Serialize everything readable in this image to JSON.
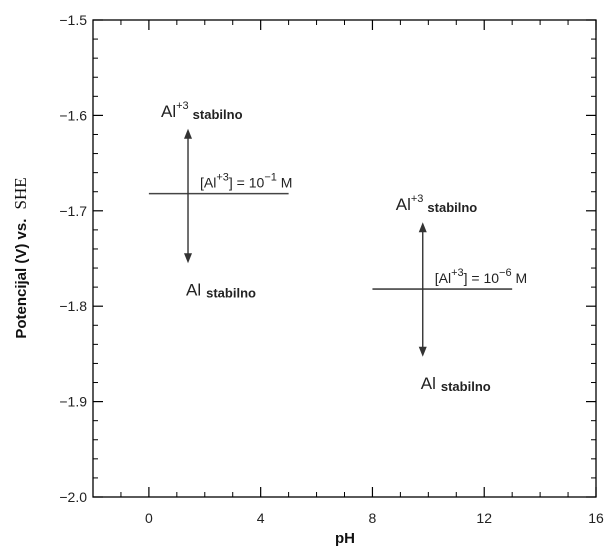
{
  "chart_data": {
    "type": "line",
    "title": "",
    "xlabel": "pH",
    "ylabel_sans": "Potencijal (V) vs.",
    "ylabel_serif": "SHE",
    "xlim": [
      -2,
      16
    ],
    "ylim": [
      -2.0,
      -1.5
    ],
    "xticks": [
      0,
      4,
      8,
      12,
      16
    ],
    "xtick_labels": [
      "0",
      "4",
      "8",
      "12",
      "16"
    ],
    "yticks": [
      -2.0,
      -1.9,
      -1.8,
      -1.7,
      -1.6,
      -1.5
    ],
    "ytick_labels": [
      "-2.0",
      "-1.9",
      "-1.8",
      "-1.7",
      "-1.6",
      "-1.5"
    ],
    "grid": false,
    "series": [
      {
        "x": [
          0,
          5
        ],
        "y": [
          -1.682,
          -1.682
        ],
        "equation": {
          "prefix": "[Al",
          "sup": "+3",
          "middle": "] = 10",
          "exp": "−1",
          "suffix": " M"
        },
        "upper_label": {
          "main": "Al",
          "sup": "+3",
          "sub": "stabilno"
        },
        "lower_label": {
          "main": "Al",
          "sub": "stabilno"
        },
        "arrow_x": 1.4,
        "arrow_y_range": [
          -1.614,
          -1.755
        ]
      },
      {
        "x": [
          8,
          13
        ],
        "y": [
          -1.782,
          -1.782
        ],
        "equation": {
          "prefix": "[Al",
          "sup": "+3",
          "middle": "] = 10",
          "exp": "−6",
          "suffix": " M"
        },
        "upper_label": {
          "main": "Al",
          "sup": "+3",
          "sub": "stabilno"
        },
        "lower_label": {
          "main": "Al",
          "sub": "stabilno"
        },
        "arrow_x": 9.8,
        "arrow_y_range": [
          -1.712,
          -1.853
        ]
      }
    ]
  }
}
